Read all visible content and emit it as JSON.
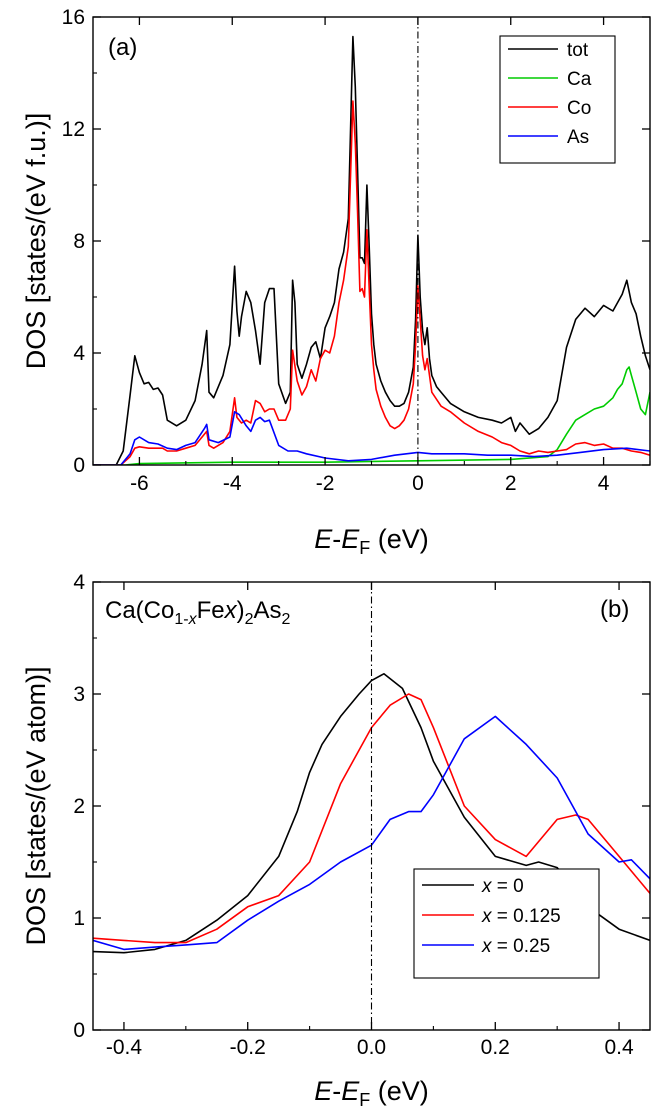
{
  "chart_data": [
    {
      "type": "line",
      "panel_label": "(a)",
      "xlabel_main": "E",
      "xlabel_dash": "-",
      "xlabel_sub_base": "E",
      "xlabel_sub": "F",
      "xlabel_unit": "(eV)",
      "ylabel": "DOS [states/(eV f.u.)]",
      "xlim": [
        -7,
        5
      ],
      "ylim": [
        0,
        16
      ],
      "xticks": [
        -6,
        -4,
        -2,
        0,
        2,
        4
      ],
      "xtick_labels": [
        "-6",
        "-4",
        "-2",
        "0",
        "2",
        "4"
      ],
      "yticks": [
        0,
        4,
        8,
        12,
        16
      ],
      "ytick_labels": [
        "0",
        "4",
        "8",
        "12",
        "16"
      ],
      "reference_line_x": 0,
      "legend_position": "top-right",
      "colors": {
        "tot": "#000000",
        "Ca": "#00cc00",
        "Co": "#ff0000",
        "As": "#0000ff"
      },
      "series": [
        {
          "name": "tot",
          "color": "#000000",
          "x": [
            -7.0,
            -6.5,
            -6.35,
            -6.2,
            -6.1,
            -6.0,
            -5.9,
            -5.8,
            -5.7,
            -5.6,
            -5.5,
            -5.4,
            -5.2,
            -5.0,
            -4.8,
            -4.65,
            -4.55,
            -4.5,
            -4.4,
            -4.2,
            -4.05,
            -3.95,
            -3.9,
            -3.85,
            -3.8,
            -3.7,
            -3.6,
            -3.5,
            -3.4,
            -3.3,
            -3.2,
            -3.1,
            -3.0,
            -2.85,
            -2.75,
            -2.7,
            -2.65,
            -2.6,
            -2.5,
            -2.4,
            -2.3,
            -2.2,
            -2.1,
            -2.0,
            -1.9,
            -1.8,
            -1.7,
            -1.6,
            -1.5,
            -1.4,
            -1.35,
            -1.3,
            -1.25,
            -1.2,
            -1.15,
            -1.1,
            -1.05,
            -1.0,
            -0.95,
            -0.9,
            -0.8,
            -0.7,
            -0.6,
            -0.5,
            -0.4,
            -0.3,
            -0.2,
            -0.1,
            -0.05,
            0.0,
            0.05,
            0.1,
            0.15,
            0.2,
            0.25,
            0.3,
            0.4,
            0.5,
            0.7,
            1.0,
            1.3,
            1.6,
            1.8,
            2.0,
            2.1,
            2.2,
            2.4,
            2.6,
            2.8,
            3.0,
            3.2,
            3.4,
            3.6,
            3.8,
            4.0,
            4.2,
            4.4,
            4.5,
            4.6,
            4.7,
            4.8,
            4.9,
            5.0
          ],
          "y": [
            0,
            0,
            0.5,
            2.5,
            3.9,
            3.3,
            2.9,
            2.95,
            2.7,
            2.75,
            2.5,
            1.6,
            1.4,
            1.6,
            2.3,
            3.6,
            4.8,
            2.6,
            2.4,
            3.2,
            4.3,
            7.1,
            5.5,
            4.6,
            5.3,
            6.2,
            5.8,
            4.8,
            3.6,
            5.8,
            6.3,
            6.3,
            2.9,
            2.2,
            2.6,
            6.6,
            5.8,
            3.6,
            3.1,
            3.6,
            4.2,
            4.4,
            3.8,
            4.9,
            5.3,
            5.8,
            7.0,
            7.6,
            8.8,
            15.3,
            13.5,
            10.5,
            7.4,
            7.4,
            7.2,
            10.0,
            7.8,
            5.4,
            4.3,
            3.6,
            3.0,
            2.6,
            2.3,
            2.1,
            2.1,
            2.2,
            2.6,
            3.5,
            5.2,
            8.2,
            6.0,
            4.8,
            4.3,
            4.9,
            3.8,
            3.2,
            2.8,
            2.6,
            2.2,
            1.9,
            1.7,
            1.6,
            1.5,
            1.7,
            1.2,
            1.5,
            1.1,
            1.3,
            1.7,
            2.3,
            4.2,
            5.2,
            5.6,
            5.3,
            5.7,
            5.5,
            6.1,
            6.6,
            5.8,
            5.4,
            4.6,
            3.9,
            3.4
          ]
        },
        {
          "name": "Ca",
          "color": "#00cc00",
          "x": [
            -7.0,
            -6.3,
            -6.0,
            -4.0,
            -2.0,
            0.0,
            2.0,
            2.8,
            3.0,
            3.2,
            3.4,
            3.6,
            3.8,
            4.0,
            4.2,
            4.3,
            4.4,
            4.5,
            4.55,
            4.6,
            4.7,
            4.8,
            4.9,
            5.0
          ],
          "y": [
            0,
            0,
            0.05,
            0.1,
            0.1,
            0.15,
            0.2,
            0.3,
            0.55,
            1.1,
            1.6,
            1.8,
            2.0,
            2.1,
            2.4,
            2.7,
            2.9,
            3.4,
            3.5,
            3.2,
            2.6,
            2.0,
            1.8,
            2.6
          ]
        },
        {
          "name": "Co",
          "color": "#ff0000",
          "x": [
            -7.0,
            -6.4,
            -6.2,
            -6.1,
            -6.0,
            -5.8,
            -5.6,
            -5.5,
            -5.4,
            -5.2,
            -5.0,
            -4.8,
            -4.65,
            -4.55,
            -4.5,
            -4.4,
            -4.2,
            -4.05,
            -3.95,
            -3.9,
            -3.8,
            -3.7,
            -3.6,
            -3.5,
            -3.4,
            -3.3,
            -3.2,
            -3.1,
            -3.0,
            -2.85,
            -2.75,
            -2.7,
            -2.6,
            -2.5,
            -2.4,
            -2.3,
            -2.2,
            -2.1,
            -2.0,
            -1.9,
            -1.8,
            -1.7,
            -1.6,
            -1.5,
            -1.4,
            -1.35,
            -1.3,
            -1.25,
            -1.2,
            -1.15,
            -1.1,
            -1.05,
            -1.0,
            -0.95,
            -0.9,
            -0.8,
            -0.7,
            -0.6,
            -0.5,
            -0.4,
            -0.3,
            -0.2,
            -0.1,
            -0.05,
            0.0,
            0.05,
            0.1,
            0.15,
            0.2,
            0.25,
            0.3,
            0.5,
            0.7,
            1.0,
            1.3,
            1.6,
            1.8,
            2.0,
            2.2,
            2.4,
            2.6,
            2.8,
            3.0,
            3.2,
            3.4,
            3.6,
            3.8,
            4.0,
            4.2,
            4.4,
            4.6,
            4.8,
            5.0
          ],
          "y": [
            0,
            0,
            0.3,
            0.6,
            0.65,
            0.6,
            0.6,
            0.6,
            0.5,
            0.5,
            0.6,
            0.7,
            1.0,
            1.2,
            0.7,
            0.6,
            0.8,
            1.2,
            2.4,
            1.7,
            1.5,
            1.6,
            1.5,
            2.3,
            2.2,
            1.9,
            2.0,
            2.0,
            1.6,
            1.6,
            2.0,
            4.1,
            3.0,
            2.5,
            2.8,
            3.4,
            3.0,
            3.8,
            4.1,
            4.0,
            4.6,
            5.8,
            6.6,
            7.8,
            13.0,
            11.5,
            9.0,
            6.2,
            6.3,
            6.0,
            8.4,
            6.3,
            4.3,
            3.4,
            2.7,
            2.1,
            1.7,
            1.4,
            1.3,
            1.4,
            1.6,
            2.0,
            2.9,
            4.3,
            6.4,
            5.2,
            3.9,
            3.4,
            3.8,
            3.2,
            2.6,
            2.1,
            1.9,
            1.5,
            1.2,
            1.0,
            0.8,
            0.7,
            0.5,
            0.4,
            0.5,
            0.45,
            0.5,
            0.55,
            0.75,
            0.8,
            0.7,
            0.75,
            0.6,
            0.6,
            0.5,
            0.45,
            0.35
          ]
        },
        {
          "name": "As",
          "color": "#0000ff",
          "x": [
            -7.0,
            -6.4,
            -6.2,
            -6.1,
            -6.0,
            -5.8,
            -5.6,
            -5.4,
            -5.2,
            -5.0,
            -4.8,
            -4.6,
            -4.55,
            -4.5,
            -4.3,
            -4.05,
            -3.95,
            -3.85,
            -3.7,
            -3.6,
            -3.5,
            -3.4,
            -3.3,
            -3.2,
            -3.0,
            -2.8,
            -2.6,
            -2.4,
            -2.0,
            -1.5,
            -1.0,
            -0.5,
            0.0,
            0.3,
            0.6,
            1.0,
            1.5,
            2.0,
            2.5,
            3.0,
            3.5,
            4.0,
            4.5,
            5.0
          ],
          "y": [
            0,
            0,
            0.4,
            0.9,
            1.0,
            0.8,
            0.75,
            0.6,
            0.55,
            0.7,
            0.8,
            1.3,
            1.45,
            0.9,
            0.8,
            1.0,
            1.9,
            1.8,
            1.4,
            1.2,
            1.6,
            1.7,
            1.55,
            1.6,
            0.7,
            0.5,
            0.5,
            0.4,
            0.25,
            0.15,
            0.2,
            0.35,
            0.45,
            0.4,
            0.4,
            0.4,
            0.35,
            0.35,
            0.3,
            0.35,
            0.45,
            0.55,
            0.6,
            0.5
          ]
        }
      ]
    },
    {
      "type": "line",
      "panel_label": "(b)",
      "annotation_parts": [
        "Ca(Co",
        "1-",
        "x",
        "Fe",
        "x",
        ")",
        "2",
        "As",
        "2"
      ],
      "xlabel_main": "E",
      "xlabel_dash": "-",
      "xlabel_sub_base": "E",
      "xlabel_sub": "F",
      "xlabel_unit": "(eV)",
      "ylabel": "DOS [states/(eV atom)]",
      "xlim": [
        -0.45,
        0.45
      ],
      "ylim": [
        0,
        4
      ],
      "xticks": [
        -0.4,
        -0.2,
        0.0,
        0.2,
        0.4
      ],
      "xtick_labels": [
        "-0.4",
        "-0.2",
        "0.0",
        "0.2",
        "0.4"
      ],
      "yticks": [
        0,
        1,
        2,
        3,
        4
      ],
      "ytick_labels": [
        "0",
        "1",
        "2",
        "3",
        "4"
      ],
      "reference_line_x": 0,
      "legend_position": "bottom-right",
      "legend_entries": [
        {
          "var": "x",
          "rest": " = 0",
          "color": "#000000"
        },
        {
          "var": "x",
          "rest": " = 0.125",
          "color": "#ff0000"
        },
        {
          "var": "x",
          "rest": " = 0.25",
          "color": "#0000ff"
        }
      ],
      "series": [
        {
          "color": "#000000",
          "x": [
            -0.45,
            -0.4,
            -0.35,
            -0.3,
            -0.25,
            -0.2,
            -0.15,
            -0.12,
            -0.1,
            -0.08,
            -0.05,
            -0.02,
            0.0,
            0.02,
            0.05,
            0.08,
            0.1,
            0.15,
            0.2,
            0.25,
            0.27,
            0.3,
            0.35,
            0.4,
            0.45
          ],
          "y": [
            0.7,
            0.69,
            0.72,
            0.8,
            0.98,
            1.2,
            1.55,
            1.95,
            2.3,
            2.55,
            2.8,
            3.0,
            3.12,
            3.18,
            3.05,
            2.7,
            2.4,
            1.9,
            1.55,
            1.47,
            1.5,
            1.45,
            1.1,
            0.9,
            0.8
          ]
        },
        {
          "color": "#ff0000",
          "x": [
            -0.45,
            -0.4,
            -0.35,
            -0.3,
            -0.25,
            -0.2,
            -0.15,
            -0.1,
            -0.05,
            0.0,
            0.03,
            0.06,
            0.08,
            0.1,
            0.15,
            0.2,
            0.25,
            0.3,
            0.33,
            0.35,
            0.4,
            0.45
          ],
          "y": [
            0.82,
            0.8,
            0.78,
            0.78,
            0.9,
            1.1,
            1.2,
            1.5,
            2.2,
            2.7,
            2.9,
            3.0,
            2.95,
            2.7,
            2.0,
            1.7,
            1.55,
            1.88,
            1.92,
            1.88,
            1.55,
            1.22
          ]
        },
        {
          "color": "#0000ff",
          "x": [
            -0.45,
            -0.4,
            -0.35,
            -0.3,
            -0.25,
            -0.2,
            -0.15,
            -0.1,
            -0.05,
            0.0,
            0.03,
            0.06,
            0.08,
            0.1,
            0.15,
            0.2,
            0.25,
            0.3,
            0.35,
            0.4,
            0.42,
            0.45
          ],
          "y": [
            0.8,
            0.72,
            0.74,
            0.76,
            0.78,
            0.98,
            1.15,
            1.3,
            1.5,
            1.65,
            1.88,
            1.95,
            1.95,
            2.1,
            2.6,
            2.8,
            2.55,
            2.25,
            1.75,
            1.5,
            1.52,
            1.35
          ]
        }
      ]
    }
  ]
}
